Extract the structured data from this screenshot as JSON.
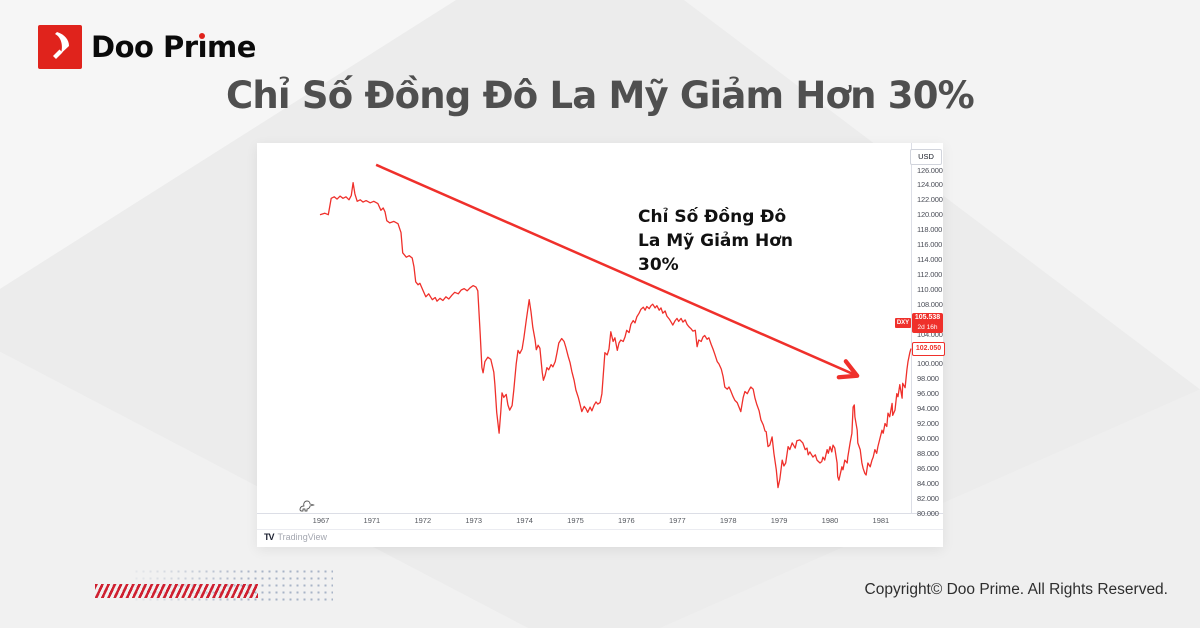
{
  "brand": {
    "name_pre": "Doo Pr",
    "name_i_dotless": "ı",
    "name_post": "me",
    "accent_red": "#e0231c"
  },
  "page_title": "Chỉ Số Đồng Đô La Mỹ Giảm Hơn 30%",
  "chart_data": {
    "type": "line",
    "symbol": "DXY",
    "unit_label": "USD",
    "annotation": "Chỉ Số Đồng Đô\nLa Mỹ Giảm Hơn\n30%",
    "line_color": "#ef302b",
    "ylim": [
      80,
      129
    ],
    "grid": false,
    "legend_position": "none",
    "price_badge": {
      "symbol": "DXY",
      "price": "105.538",
      "eta": "2d 16h"
    },
    "last_price_label": "102.050",
    "y_ticks": [
      "126.000",
      "124.000",
      "122.000",
      "120.000",
      "118.000",
      "116.000",
      "114.000",
      "112.000",
      "110.000",
      "108.000",
      "106.000",
      "104.000",
      "102.000",
      "100.000",
      "98.000",
      "96.000",
      "94.000",
      "92.000",
      "90.000",
      "88.000",
      "86.000",
      "84.000",
      "82.000",
      "80.000"
    ],
    "x_ticks": [
      "1967",
      "1971",
      "1972",
      "1973",
      "1974",
      "1975",
      "1976",
      "1977",
      "1978",
      "1979",
      "1980",
      "1981"
    ],
    "trend_arrow": {
      "t1": 9.5,
      "v1": 126.7,
      "t2": 90.9,
      "v2": 98.4
    },
    "series": [
      [
        0,
        120.0
      ],
      [
        0.8,
        120.2
      ],
      [
        1.4,
        120.0
      ],
      [
        1.9,
        122.2
      ],
      [
        2.4,
        122.4
      ],
      [
        2.9,
        122.1
      ],
      [
        3.4,
        122.5
      ],
      [
        3.9,
        122.2
      ],
      [
        4.4,
        122.4
      ],
      [
        4.9,
        122.0
      ],
      [
        5.3,
        122.6
      ],
      [
        5.6,
        124.3
      ],
      [
        5.9,
        122.8
      ],
      [
        6.3,
        121.8
      ],
      [
        6.8,
        122.0
      ],
      [
        7.3,
        121.7
      ],
      [
        7.8,
        121.9
      ],
      [
        8.5,
        121.6
      ],
      [
        9.1,
        121.8
      ],
      [
        9.8,
        121.5
      ],
      [
        10.3,
        120.6
      ],
      [
        10.7,
        120.9
      ],
      [
        11.0,
        120.4
      ],
      [
        11.3,
        119.2
      ],
      [
        11.8,
        118.9
      ],
      [
        12.5,
        119.1
      ],
      [
        13.2,
        118.8
      ],
      [
        13.7,
        117.6
      ],
      [
        14.0,
        114.9
      ],
      [
        14.6,
        114.3
      ],
      [
        15.1,
        114.5
      ],
      [
        15.6,
        114.2
      ],
      [
        15.9,
        113.0
      ],
      [
        16.2,
        111.0
      ],
      [
        16.6,
        110.6
      ],
      [
        16.9,
        110.8
      ],
      [
        17.4,
        109.9
      ],
      [
        17.9,
        109.0
      ],
      [
        18.4,
        109.4
      ],
      [
        19.0,
        108.6
      ],
      [
        19.5,
        108.9
      ],
      [
        19.8,
        108.4
      ],
      [
        20.3,
        108.8
      ],
      [
        20.8,
        108.5
      ],
      [
        21.3,
        109.0
      ],
      [
        21.8,
        108.7
      ],
      [
        22.3,
        109.2
      ],
      [
        22.8,
        109.6
      ],
      [
        23.4,
        109.4
      ],
      [
        23.9,
        109.9
      ],
      [
        24.4,
        110.1
      ],
      [
        24.9,
        109.8
      ],
      [
        25.4,
        110.2
      ],
      [
        25.9,
        110.5
      ],
      [
        26.4,
        110.3
      ],
      [
        26.7,
        109.8
      ],
      [
        27.1,
        104.0
      ],
      [
        27.4,
        99.5
      ],
      [
        27.6,
        98.8
      ],
      [
        27.9,
        100.3
      ],
      [
        28.4,
        100.9
      ],
      [
        28.9,
        100.6
      ],
      [
        29.4,
        98.9
      ],
      [
        29.6,
        97.2
      ],
      [
        29.9,
        93.5
      ],
      [
        30.3,
        90.7
      ],
      [
        30.6,
        93.6
      ],
      [
        30.8,
        96.1
      ],
      [
        31.1,
        95.5
      ],
      [
        31.5,
        95.9
      ],
      [
        31.8,
        94.5
      ],
      [
        32.1,
        93.8
      ],
      [
        32.5,
        94.4
      ],
      [
        32.8,
        96.5
      ],
      [
        33.2,
        100.0
      ],
      [
        33.5,
        101.8
      ],
      [
        33.8,
        101.4
      ],
      [
        34.2,
        102.0
      ],
      [
        34.5,
        103.5
      ],
      [
        34.9,
        105.9
      ],
      [
        35.4,
        108.6
      ],
      [
        35.7,
        107.0
      ],
      [
        36.0,
        104.9
      ],
      [
        36.4,
        103.2
      ],
      [
        36.6,
        101.9
      ],
      [
        36.9,
        102.5
      ],
      [
        37.2,
        102.1
      ],
      [
        37.6,
        98.9
      ],
      [
        37.8,
        97.8
      ],
      [
        38.1,
        98.5
      ],
      [
        38.4,
        99.5
      ],
      [
        38.7,
        99.2
      ],
      [
        39.1,
        99.9
      ],
      [
        39.4,
        99.6
      ],
      [
        39.8,
        100.3
      ],
      [
        40.1,
        101.5
      ],
      [
        40.4,
        102.8
      ],
      [
        40.9,
        103.4
      ],
      [
        41.3,
        103.0
      ],
      [
        41.6,
        102.2
      ],
      [
        42.0,
        101.0
      ],
      [
        42.3,
        100.2
      ],
      [
        42.6,
        99.0
      ],
      [
        43.0,
        97.8
      ],
      [
        43.3,
        96.5
      ],
      [
        43.7,
        95.5
      ],
      [
        44.0,
        94.6
      ],
      [
        44.3,
        93.6
      ],
      [
        44.7,
        94.3
      ],
      [
        45.0,
        94.0
      ],
      [
        45.3,
        93.5
      ],
      [
        45.7,
        94.2
      ],
      [
        46.0,
        93.7
      ],
      [
        46.4,
        94.5
      ],
      [
        46.7,
        94.9
      ],
      [
        47.0,
        94.6
      ],
      [
        47.4,
        94.8
      ],
      [
        47.7,
        96.0
      ],
      [
        48.2,
        101.5
      ],
      [
        48.6,
        101.2
      ],
      [
        48.9,
        102.0
      ],
      [
        49.2,
        104.3
      ],
      [
        49.6,
        103.0
      ],
      [
        49.9,
        103.5
      ],
      [
        50.3,
        101.8
      ],
      [
        50.6,
        102.8
      ],
      [
        50.9,
        103.2
      ],
      [
        51.3,
        103.0
      ],
      [
        51.6,
        103.6
      ],
      [
        51.9,
        104.5
      ],
      [
        52.3,
        104.2
      ],
      [
        52.6,
        105.3
      ],
      [
        53.0,
        105.8
      ],
      [
        53.3,
        105.5
      ],
      [
        53.6,
        106.3
      ],
      [
        54.0,
        106.8
      ],
      [
        54.3,
        107.3
      ],
      [
        54.7,
        107.6
      ],
      [
        55.0,
        107.2
      ],
      [
        55.3,
        107.7
      ],
      [
        55.7,
        107.4
      ],
      [
        56.0,
        107.8
      ],
      [
        56.3,
        108.0
      ],
      [
        56.7,
        107.5
      ],
      [
        57.0,
        107.8
      ],
      [
        57.4,
        107.2
      ],
      [
        57.7,
        107.5
      ],
      [
        58.0,
        106.8
      ],
      [
        58.4,
        107.1
      ],
      [
        58.7,
        106.4
      ],
      [
        59.1,
        106.0
      ],
      [
        59.4,
        105.6
      ],
      [
        59.7,
        105.2
      ],
      [
        60.1,
        105.8
      ],
      [
        60.4,
        106.1
      ],
      [
        60.7,
        105.7
      ],
      [
        61.1,
        106.1
      ],
      [
        61.4,
        105.6
      ],
      [
        61.8,
        105.9
      ],
      [
        62.1,
        105.3
      ],
      [
        62.4,
        105.0
      ],
      [
        62.8,
        104.7
      ],
      [
        63.1,
        104.4
      ],
      [
        63.5,
        104.5
      ],
      [
        63.8,
        102.3
      ],
      [
        64.1,
        103.2
      ],
      [
        64.5,
        103.0
      ],
      [
        64.8,
        103.6
      ],
      [
        65.1,
        103.8
      ],
      [
        65.5,
        103.3
      ],
      [
        65.8,
        103.5
      ],
      [
        66.2,
        102.6
      ],
      [
        66.5,
        102.0
      ],
      [
        66.8,
        101.3
      ],
      [
        67.2,
        100.3
      ],
      [
        67.5,
        100.0
      ],
      [
        67.9,
        99.3
      ],
      [
        68.2,
        98.3
      ],
      [
        68.5,
        96.9
      ],
      [
        68.9,
        96.6
      ],
      [
        69.2,
        96.9
      ],
      [
        69.5,
        96.4
      ],
      [
        69.9,
        95.6
      ],
      [
        70.2,
        95.1
      ],
      [
        70.6,
        94.8
      ],
      [
        70.9,
        94.2
      ],
      [
        71.2,
        93.6
      ],
      [
        71.6,
        95.5
      ],
      [
        71.9,
        96.3
      ],
      [
        72.3,
        96.0
      ],
      [
        72.6,
        96.5
      ],
      [
        72.9,
        96.9
      ],
      [
        73.3,
        96.6
      ],
      [
        73.6,
        95.4
      ],
      [
        73.9,
        94.6
      ],
      [
        74.3,
        93.7
      ],
      [
        74.6,
        92.5
      ],
      [
        75.0,
        91.8
      ],
      [
        75.3,
        91.0
      ],
      [
        75.5,
        90.9
      ],
      [
        75.8,
        88.9
      ],
      [
        76.1,
        89.1
      ],
      [
        76.5,
        90.2
      ],
      [
        76.8,
        88.0
      ],
      [
        77.2,
        85.8
      ],
      [
        77.5,
        83.4
      ],
      [
        77.8,
        84.5
      ],
      [
        78.2,
        87.1
      ],
      [
        78.5,
        86.3
      ],
      [
        78.8,
        86.7
      ],
      [
        79.2,
        88.9
      ],
      [
        79.5,
        88.5
      ],
      [
        79.9,
        89.4
      ],
      [
        80.4,
        88.7
      ],
      [
        80.7,
        89.7
      ],
      [
        81.2,
        89.8
      ],
      [
        81.7,
        89.4
      ],
      [
        82.1,
        88.5
      ],
      [
        82.4,
        88.7
      ],
      [
        82.6,
        87.8
      ],
      [
        82.9,
        88.2
      ],
      [
        83.4,
        87.5
      ],
      [
        83.8,
        87.8
      ],
      [
        84.1,
        87.1
      ],
      [
        84.6,
        86.7
      ],
      [
        84.9,
        86.9
      ],
      [
        85.1,
        87.5
      ],
      [
        85.4,
        87.1
      ],
      [
        85.8,
        88.5
      ],
      [
        86.0,
        88.0
      ],
      [
        86.3,
        88.9
      ],
      [
        86.6,
        88.2
      ],
      [
        86.8,
        89.1
      ],
      [
        87.1,
        88.7
      ],
      [
        87.5,
        86.7
      ],
      [
        87.6,
        84.9
      ],
      [
        87.8,
        84.4
      ],
      [
        88.3,
        86.2
      ],
      [
        88.5,
        85.8
      ],
      [
        88.8,
        87.1
      ],
      [
        89.2,
        86.7
      ],
      [
        89.3,
        87.5
      ],
      [
        89.7,
        89.4
      ],
      [
        90.0,
        90.7
      ],
      [
        90.2,
        94.2
      ],
      [
        90.4,
        94.5
      ],
      [
        90.5,
        92.9
      ],
      [
        90.9,
        91.1
      ],
      [
        91.0,
        89.4
      ],
      [
        91.4,
        88.5
      ],
      [
        91.7,
        86.7
      ],
      [
        91.9,
        86.0
      ],
      [
        92.2,
        85.3
      ],
      [
        92.4,
        85.1
      ],
      [
        92.7,
        86.7
      ],
      [
        93.1,
        86.2
      ],
      [
        93.4,
        87.1
      ],
      [
        93.6,
        87.5
      ],
      [
        93.9,
        88.5
      ],
      [
        94.2,
        88.0
      ],
      [
        94.4,
        88.9
      ],
      [
        95.1,
        91.1
      ],
      [
        95.3,
        90.7
      ],
      [
        95.6,
        92.0
      ],
      [
        95.9,
        91.6
      ],
      [
        96.1,
        93.4
      ],
      [
        96.4,
        92.9
      ],
      [
        96.8,
        94.7
      ],
      [
        96.9,
        93.1
      ],
      [
        97.3,
        93.8
      ],
      [
        97.6,
        96.0
      ],
      [
        97.8,
        95.6
      ],
      [
        98.1,
        97.2
      ],
      [
        98.5,
        95.4
      ],
      [
        98.6,
        97.4
      ],
      [
        99.0,
        96.8
      ],
      [
        99.3,
        99.2
      ],
      [
        99.5,
        100.3
      ],
      [
        99.8,
        101.5
      ],
      [
        100,
        102.05
      ]
    ],
    "attribution": {
      "mark": "TV",
      "label": "TradingView"
    }
  },
  "footer": {
    "copyright": "Copyright© Doo Prime. All Rights Reserved."
  }
}
